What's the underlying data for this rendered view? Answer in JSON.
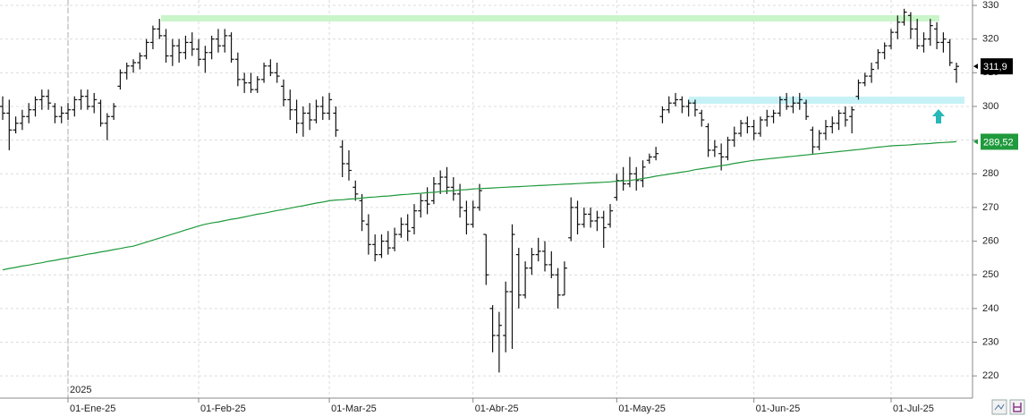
{
  "chart_data": {
    "type": "ohlc",
    "year_label": "2025",
    "categories": [
      null,
      null,
      null,
      null,
      null,
      null,
      null,
      null,
      null,
      null,
      "01-Ene-25",
      null,
      null,
      null,
      null,
      null,
      null,
      null,
      null,
      null,
      null,
      null,
      null,
      null,
      null,
      null,
      null,
      null,
      null,
      null,
      "01-Feb-25",
      null,
      null,
      null,
      null,
      null,
      null,
      null,
      null,
      null,
      null,
      null,
      null,
      null,
      null,
      null,
      null,
      null,
      null,
      null,
      "01-Mar-25",
      null,
      null,
      null,
      null,
      null,
      null,
      null,
      null,
      null,
      null,
      null,
      null,
      null,
      null,
      null,
      null,
      null,
      null,
      null,
      null,
      null,
      "01-Abr-25",
      null,
      null,
      null,
      null,
      null,
      null,
      null,
      null,
      null,
      null,
      null,
      null,
      null,
      null,
      null,
      null,
      null,
      null,
      null,
      null,
      null,
      "01-May-25",
      null,
      null,
      null,
      null,
      null,
      null,
      null,
      null,
      null,
      null,
      null,
      null,
      null,
      null,
      null,
      null,
      null,
      null,
      null,
      null,
      "01-Jun-25",
      null,
      null,
      null,
      null,
      null,
      null,
      null,
      null,
      null,
      null,
      null,
      null,
      null,
      null,
      null,
      null,
      null,
      null,
      null,
      null,
      "01-Jul-25",
      null,
      null,
      null,
      null,
      null,
      null,
      null,
      null,
      null,
      null
    ],
    "open": [
      300,
      298,
      293,
      295,
      297,
      299,
      302,
      303,
      300,
      297,
      298,
      299,
      302,
      303,
      300,
      301,
      295,
      297,
      306,
      310,
      312,
      313,
      315,
      319,
      323,
      321,
      315,
      318,
      316,
      319,
      317,
      314,
      316,
      320,
      318,
      321,
      314,
      308,
      307,
      305,
      308,
      312,
      310,
      306,
      302,
      299,
      295,
      298,
      296,
      300,
      298,
      298,
      288,
      283,
      276,
      272,
      265,
      259,
      256,
      260,
      258,
      262,
      265,
      264,
      269,
      272,
      272,
      277,
      279,
      276,
      274,
      269,
      265,
      270,
      262,
      240,
      232,
      232,
      245,
      256,
      244,
      252,
      256,
      257,
      253,
      250,
      244,
      261,
      270,
      265,
      268,
      266,
      267,
      265,
      273,
      278,
      277,
      280,
      278,
      284,
      285,
      297,
      299,
      301,
      302,
      300,
      301,
      298,
      294,
      287,
      286,
      285,
      290,
      292,
      295,
      294,
      292,
      296,
      297,
      298,
      302,
      300,
      301,
      301,
      293,
      288,
      292,
      294,
      295,
      298,
      297,
      303,
      307,
      309,
      313,
      316,
      318,
      322,
      325,
      327,
      323,
      318,
      320,
      323,
      319,
      319,
      311
    ],
    "high": [
      303,
      302,
      297,
      299,
      301,
      303,
      305,
      305,
      301,
      300,
      301,
      303,
      305,
      305,
      304,
      302,
      298,
      301,
      311,
      313,
      314,
      316,
      320,
      324,
      326,
      323,
      320,
      320,
      321,
      322,
      320,
      318,
      321,
      323,
      323,
      322,
      316,
      310,
      310,
      309,
      313,
      314,
      313,
      308,
      305,
      302,
      300,
      301,
      302,
      303,
      304,
      300,
      290,
      287,
      278,
      274,
      268,
      262,
      262,
      263,
      264,
      267,
      268,
      271,
      274,
      276,
      279,
      281,
      282,
      279,
      277,
      272,
      272,
      277,
      262,
      241,
      239,
      248,
      265,
      258,
      254,
      258,
      261,
      260,
      257,
      252,
      254,
      273,
      272,
      270,
      270,
      269,
      269,
      271,
      280,
      282,
      285,
      282,
      284,
      286,
      288,
      300,
      303,
      304,
      303,
      302,
      302,
      299,
      295,
      290,
      289,
      291,
      294,
      296,
      297,
      296,
      297,
      299,
      299,
      303,
      304,
      303,
      304,
      302,
      294,
      293,
      296,
      297,
      299,
      300,
      300,
      308,
      310,
      313,
      317,
      319,
      323,
      327,
      329,
      328,
      326,
      322,
      326,
      325,
      322,
      320,
      313
    ],
    "low": [
      296,
      287,
      292,
      293,
      295,
      297,
      299,
      299,
      295,
      295,
      296,
      297,
      299,
      299,
      298,
      294,
      290,
      296,
      305,
      308,
      310,
      311,
      314,
      317,
      320,
      313,
      312,
      313,
      314,
      315,
      312,
      310,
      314,
      316,
      316,
      313,
      306,
      304,
      304,
      304,
      307,
      309,
      307,
      300,
      296,
      292,
      291,
      293,
      295,
      296,
      296,
      291,
      279,
      278,
      272,
      263,
      256,
      254,
      255,
      256,
      257,
      261,
      260,
      262,
      267,
      268,
      271,
      274,
      274,
      272,
      267,
      262,
      264,
      269,
      247,
      227,
      221,
      227,
      228,
      240,
      243,
      250,
      254,
      251,
      249,
      240,
      244,
      260,
      262,
      264,
      264,
      263,
      258,
      264,
      272,
      275,
      276,
      275,
      276,
      283,
      284,
      295,
      298,
      300,
      298,
      297,
      297,
      294,
      285,
      285,
      281,
      284,
      288,
      291,
      292,
      290,
      291,
      294,
      295,
      297,
      299,
      298,
      299,
      296,
      286,
      287,
      290,
      292,
      293,
      294,
      292,
      302,
      306,
      307,
      311,
      314,
      317,
      320,
      324,
      320,
      317,
      316,
      318,
      317,
      316,
      312,
      307
    ],
    "close": [
      298,
      293,
      295,
      297,
      299,
      302,
      303,
      301,
      297,
      298,
      299,
      302,
      303,
      300,
      302,
      295,
      297,
      300,
      310,
      312,
      313,
      315,
      319,
      323,
      321,
      315,
      318,
      316,
      319,
      317,
      314,
      316,
      320,
      318,
      321,
      314,
      308,
      307,
      305,
      308,
      312,
      310,
      309,
      302,
      299,
      295,
      298,
      296,
      300,
      298,
      302,
      293,
      283,
      281,
      274,
      266,
      259,
      256,
      260,
      258,
      262,
      265,
      263,
      269,
      272,
      271,
      277,
      279,
      276,
      274,
      270,
      265,
      270,
      275,
      250,
      232,
      235,
      245,
      262,
      244,
      252,
      256,
      257,
      253,
      250,
      244,
      252,
      270,
      265,
      268,
      266,
      267,
      264,
      269,
      278,
      277,
      280,
      278,
      282,
      285,
      286,
      299,
      301,
      302,
      300,
      301,
      299,
      296,
      287,
      288,
      285,
      290,
      292,
      295,
      294,
      292,
      296,
      297,
      298,
      302,
      300,
      301,
      302,
      297,
      288,
      292,
      294,
      295,
      298,
      296,
      299,
      307,
      309,
      311,
      316,
      318,
      322,
      325,
      328,
      323,
      318,
      320,
      324,
      319,
      320,
      313,
      311.9
    ],
    "last_close_label": "311,9",
    "color": "#111111",
    "ma": {
      "color": "#1f9a3c",
      "last_label": "289,52",
      "values": [
        251.5,
        251.9,
        252.2,
        252.6,
        252.9,
        253.3,
        253.6,
        254,
        254.3,
        254.7,
        255,
        255.4,
        255.7,
        256.1,
        256.4,
        256.8,
        257.1,
        257.5,
        257.8,
        258.2,
        258.5,
        259.1,
        259.7,
        260.3,
        260.9,
        261.5,
        262.1,
        262.7,
        263.3,
        263.9,
        264.5,
        265,
        265.4,
        265.7,
        266.1,
        266.5,
        266.8,
        267.2,
        267.6,
        268,
        268.3,
        268.7,
        269.1,
        269.4,
        269.8,
        270.2,
        270.5,
        270.9,
        271.3,
        271.6,
        272,
        272.2,
        272.3,
        272.5,
        272.6,
        272.8,
        273,
        273.1,
        273.3,
        273.4,
        273.6,
        273.8,
        273.9,
        274.1,
        274.2,
        274.4,
        274.5,
        274.7,
        274.9,
        275,
        275.2,
        275.3,
        275.5,
        275.6,
        275.7,
        275.8,
        275.9,
        276,
        276.1,
        276.2,
        276.3,
        276.4,
        276.5,
        276.6,
        276.7,
        276.8,
        276.9,
        277,
        277.1,
        277.2,
        277.3,
        277.4,
        277.5,
        277.6,
        277.8,
        277.9,
        278,
        278.3,
        278.6,
        278.9,
        279.3,
        279.6,
        279.9,
        280.2,
        280.5,
        280.8,
        281.2,
        281.5,
        281.8,
        282.1,
        282.4,
        282.7,
        283.1,
        283.4,
        283.7,
        284,
        284.2,
        284.4,
        284.6,
        284.8,
        285,
        285.2,
        285.4,
        285.6,
        285.8,
        286,
        286.2,
        286.4,
        286.6,
        286.8,
        287,
        287.2,
        287.4,
        287.7,
        287.9,
        288.1,
        288.3,
        288.4,
        288.5,
        288.6,
        288.8,
        288.9,
        289,
        289.2,
        289.3,
        289.4,
        289.52
      ]
    },
    "ylim": [
      213.4,
      331.6
    ],
    "yticks": [
      220,
      230,
      240,
      250,
      260,
      270,
      280,
      290,
      300,
      310,
      320,
      330
    ],
    "grid": true
  }
}
